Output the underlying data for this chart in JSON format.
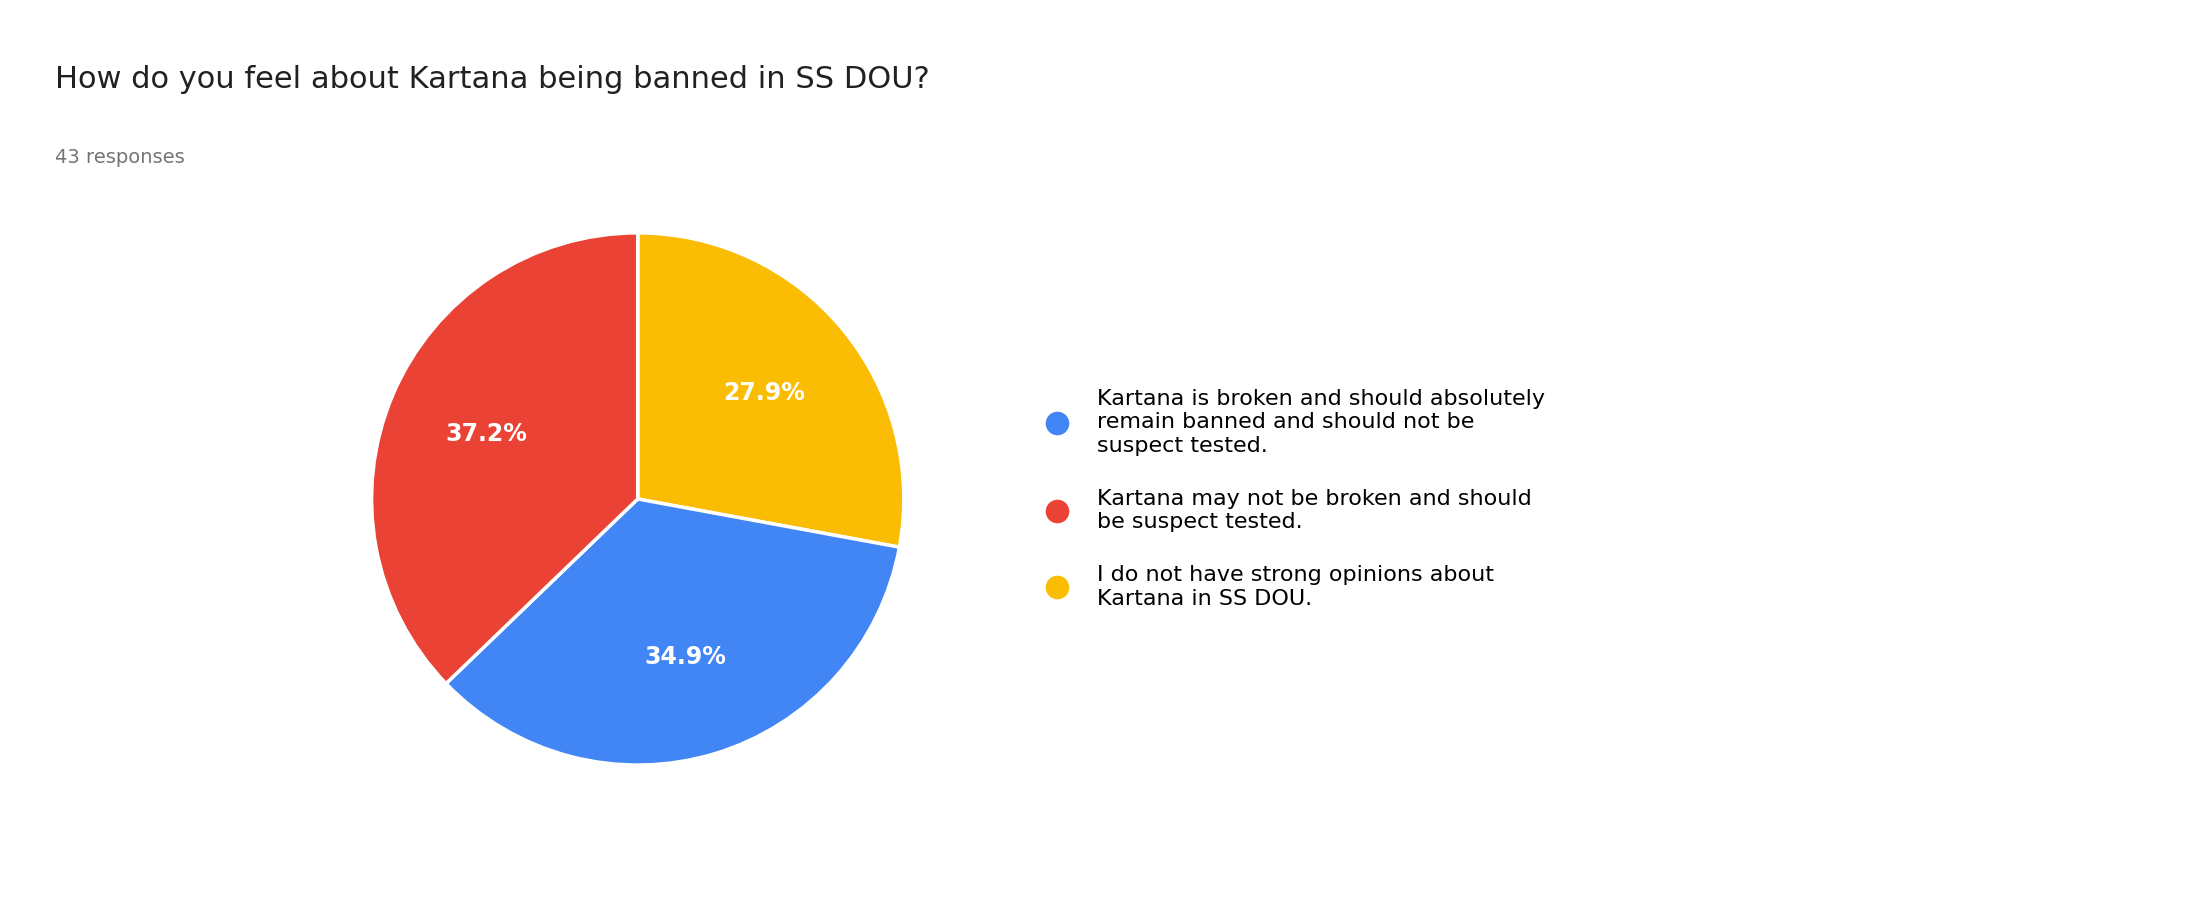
{
  "title": "How do you feel about Kartana being banned in SS DOU?",
  "subtitle": "43 responses",
  "slices": [
    34.9,
    37.2,
    27.9
  ],
  "colors": [
    "#4285F4",
    "#EA4335",
    "#FBBC04"
  ],
  "labels": [
    "34.9%",
    "37.2%",
    "27.9%"
  ],
  "legend_labels": [
    "Kartana is broken and should absolutely\nremain banned and should not be\nsuspect tested.",
    "Kartana may not be broken and should\nbe suspect tested.",
    "I do not have strong opinions about\nKartana in SS DOU."
  ],
  "background_color": "#ffffff",
  "title_fontsize": 22,
  "subtitle_fontsize": 14,
  "label_fontsize": 17,
  "legend_fontsize": 16
}
